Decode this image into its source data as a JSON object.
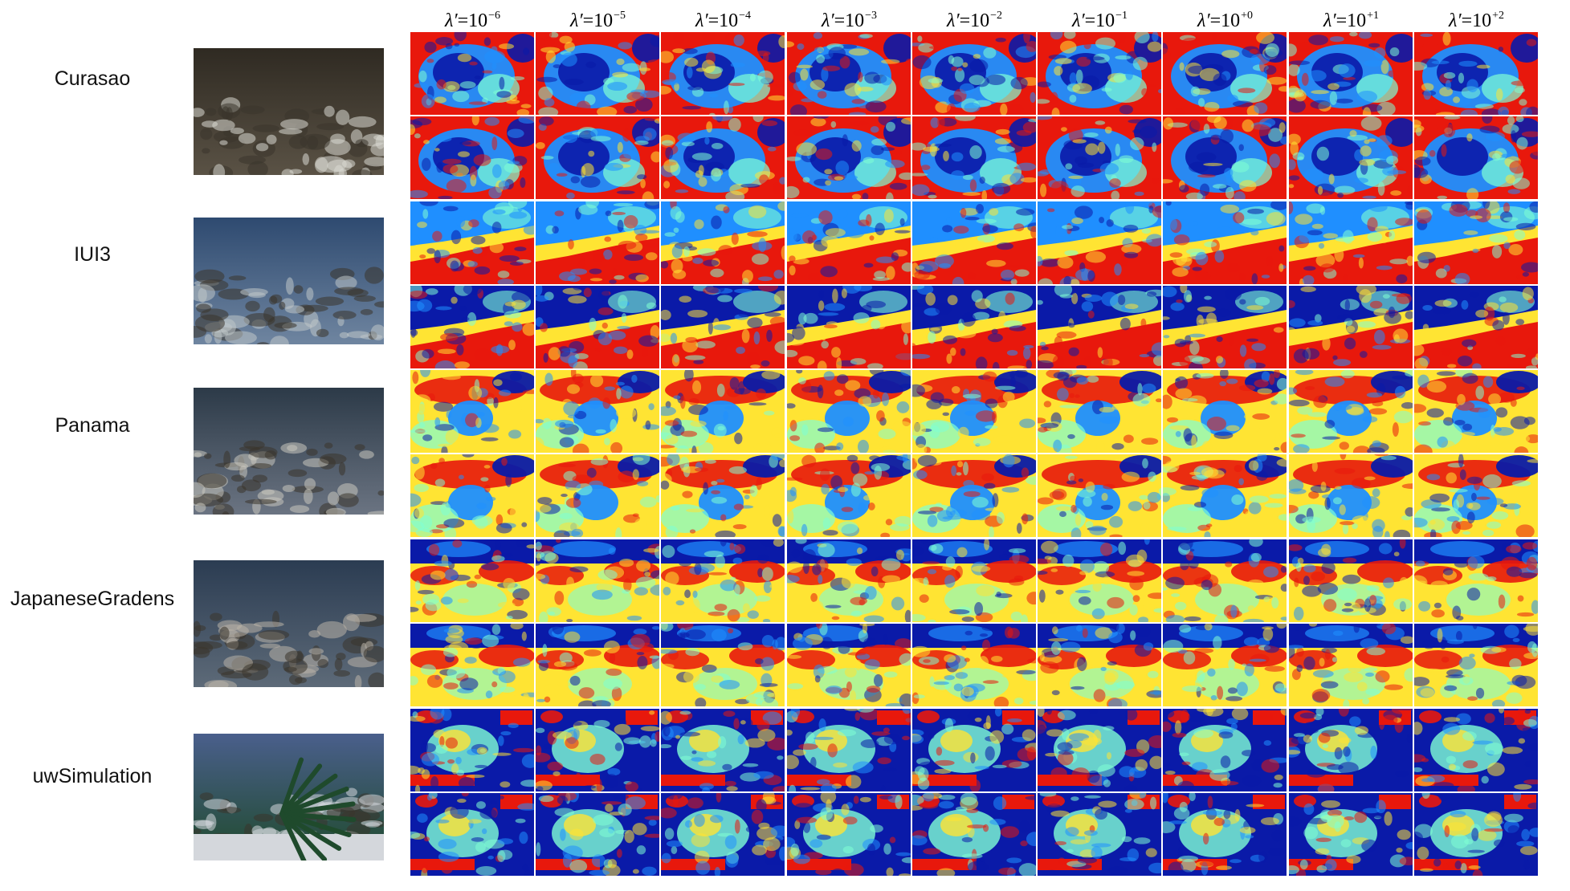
{
  "figure": {
    "columns": [
      {
        "base": "λ′",
        "eq": "=",
        "num": "10",
        "exp": "−6"
      },
      {
        "base": "λ′",
        "eq": "=",
        "num": "10",
        "exp": "−5"
      },
      {
        "base": "λ′",
        "eq": "=",
        "num": "10",
        "exp": "−4"
      },
      {
        "base": "λ′",
        "eq": "=",
        "num": "10",
        "exp": "−3"
      },
      {
        "base": "λ′",
        "eq": "=",
        "num": "10",
        "exp": "−2"
      },
      {
        "base": "λ′",
        "eq": "=",
        "num": "10",
        "exp": "−1"
      },
      {
        "base": "λ′",
        "eq": "=",
        "num": "10",
        "exp": "+0"
      },
      {
        "base": "λ′",
        "eq": "=",
        "num": "10",
        "exp": "+1"
      },
      {
        "base": "λ′",
        "eq": "=",
        "num": "10",
        "exp": "+2"
      }
    ],
    "scenes": [
      {
        "label": "Curasao",
        "photo_colors": [
          "#2f2a22",
          "#5a5245",
          "#d8d8d2"
        ],
        "map_style": "swirl-red-rim"
      },
      {
        "label": "IUI3",
        "photo_colors": [
          "#2e4a70",
          "#6f85a0",
          "#bfc6c9"
        ],
        "map_style": "blue-top-red-bottom"
      },
      {
        "label": "Panama",
        "photo_colors": [
          "#2c3a48",
          "#6b7482",
          "#c9c6bd"
        ],
        "map_style": "blue-center-blob"
      },
      {
        "label": "JapaneseGradens",
        "photo_colors": [
          "#2b3c52",
          "#5d6a78",
          "#b9b3a8"
        ],
        "map_style": "blue-top-mixed"
      },
      {
        "label": "uwSimulation",
        "photo_colors": [
          "#4a5f8c",
          "#1f4a2c",
          "#d4d7dc"
        ],
        "map_style": "plant-red-blocks"
      }
    ],
    "colormap": {
      "low": "#0a1aa8",
      "mid_low": "#1f8fff",
      "mid": "#7fffd4",
      "mid_high": "#ffe433",
      "high": "#e8180c"
    }
  }
}
